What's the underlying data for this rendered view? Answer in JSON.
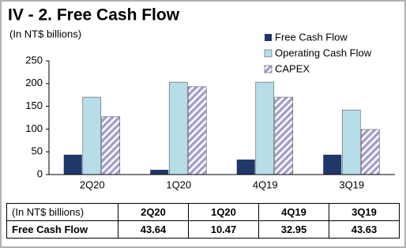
{
  "chart_data": {
    "type": "bar",
    "title": "IV - 2. Free Cash Flow",
    "subtitle": "(In NT$ billions)",
    "categories": [
      "2Q20",
      "1Q20",
      "4Q19",
      "3Q19"
    ],
    "series": [
      {
        "name": "Free Cash Flow",
        "color": "#1f3868",
        "values": [
          43.64,
          10.47,
          32.95,
          43.63
        ]
      },
      {
        "name": "Operating Cash Flow",
        "color": "#b7dde8",
        "values": [
          170,
          203,
          203,
          142
        ]
      },
      {
        "name": "CAPEX",
        "color": "#a79fcb",
        "pattern": "hatch",
        "values": [
          127,
          193,
          170,
          99
        ]
      }
    ],
    "ylim": [
      0,
      250
    ],
    "yticks": [
      0,
      50,
      100,
      150,
      200,
      250
    ],
    "grid": false,
    "legend": "top-right"
  }
}
